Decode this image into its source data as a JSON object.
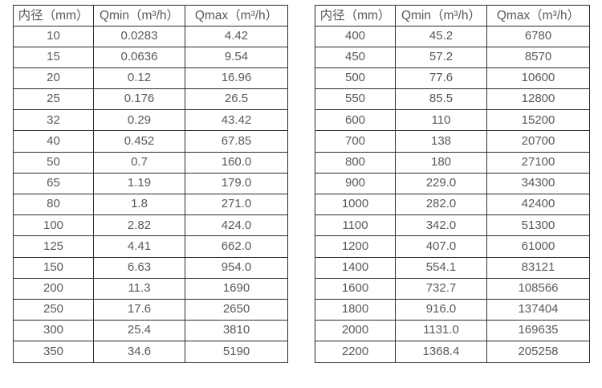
{
  "colors": {
    "background": "#ffffff",
    "border": "#2e2e2e",
    "text": "#595959"
  },
  "tables": [
    {
      "name": "flow-range-table-dn10-350",
      "headers": [
        "内径（mm）",
        "Qmin（m³/h）",
        "Qmax（m³/h）"
      ],
      "rows": [
        [
          "10",
          "0.0283",
          "4.42"
        ],
        [
          "15",
          "0.0636",
          "9.54"
        ],
        [
          "20",
          "0.12",
          "16.96"
        ],
        [
          "25",
          "0.176",
          "26.5"
        ],
        [
          "32",
          "0.29",
          "43.42"
        ],
        [
          "40",
          "0.452",
          "67.85"
        ],
        [
          "50",
          "0.7",
          "160.0"
        ],
        [
          "65",
          "1.19",
          "179.0"
        ],
        [
          "80",
          "1.8",
          "271.0"
        ],
        [
          "100",
          "2.82",
          "424.0"
        ],
        [
          "125",
          "4.41",
          "662.0"
        ],
        [
          "150",
          "6.63",
          "954.0"
        ],
        [
          "200",
          "11.3",
          "1690"
        ],
        [
          "250",
          "17.6",
          "2650"
        ],
        [
          "300",
          "25.4",
          "3810"
        ],
        [
          "350",
          "34.6",
          "5190"
        ]
      ]
    },
    {
      "name": "flow-range-table-dn400-2200",
      "headers": [
        "内径（mm）",
        "Qmin（m³/h）",
        "Qmax（m³/h）"
      ],
      "rows": [
        [
          "400",
          "45.2",
          "6780"
        ],
        [
          "450",
          "57.2",
          "8570"
        ],
        [
          "500",
          "77.6",
          "10600"
        ],
        [
          "550",
          "85.5",
          "12800"
        ],
        [
          "600",
          "110",
          "15200"
        ],
        [
          "700",
          "138",
          "20700"
        ],
        [
          "800",
          "180",
          "27100"
        ],
        [
          "900",
          "229.0",
          "34300"
        ],
        [
          "1000",
          "282.0",
          "42400"
        ],
        [
          "1100",
          "342.0",
          "51300"
        ],
        [
          "1200",
          "407.0",
          "61000"
        ],
        [
          "1400",
          "554.1",
          "83121"
        ],
        [
          "1600",
          "732.7",
          "108566"
        ],
        [
          "1800",
          "916.0",
          "137404"
        ],
        [
          "2000",
          "1131.0",
          "169635"
        ],
        [
          "2200",
          "1368.4",
          "205258"
        ]
      ]
    }
  ]
}
